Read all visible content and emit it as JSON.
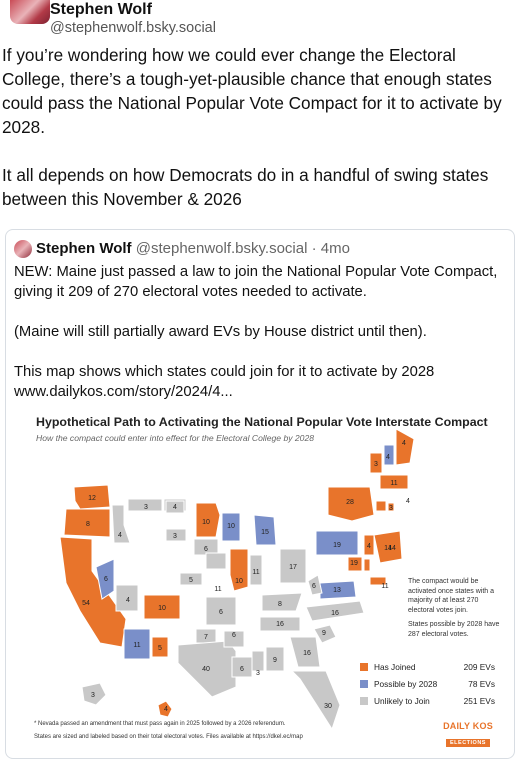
{
  "post": {
    "author_name": "Stephen Wolf",
    "author_handle": "@stephenwolf.bsky.social",
    "paragraphs": [
      "If you’re wondering how we could ever change the Electoral College, there’s a tough-yet-plausible chance that enough states could pass the National Popular Vote Compact for it to activate by 2028.",
      "It all depends on how Democrats do in a handful of swing states between this November & 2026"
    ]
  },
  "quote": {
    "author_name": "Stephen Wolf",
    "author_handle": "@stephenwolf.bsky.social",
    "time": "· 4mo",
    "paragraphs": [
      "NEW: Maine just passed a law to join the National Popular Vote Compact, giving it 209 of 270 electoral votes needed to activate.",
      "(Maine will still partially award EVs by House district until then).",
      "This map shows which states could join for it to activate by 2028 www.dailykos.com/story/2024/4..."
    ]
  },
  "map": {
    "title": "Hypothetical Path to Activating the National Popular Vote Interstate Compact",
    "subtitle": "How the compact could enter into effect for the Electoral College by 2028",
    "note1": "The compact would be activated once states with a majority of at least 270 electoral votes join.",
    "note2": "States possible by 2028 have 287 electoral votes.",
    "footnote1": "* Nevada passed an amendment that must pass again in 2025 followed by a 2026 referendum.",
    "footnote2": "States are sized and labeled based on their total electoral votes. Files available at https://dkel.ec/map",
    "logo_top": "DAILY KOS",
    "logo_bottom": "ELECTIONS",
    "colors": {
      "joined": "#e8742b",
      "possible": "#7a8fc9",
      "unlikely": "#c8c8c8"
    },
    "legend": [
      {
        "label": "Has Joined",
        "value": "209 EVs",
        "color": "#e8742b"
      },
      {
        "label": "Possible by 2028",
        "value": "78 EVs",
        "color": "#7a8fc9"
      },
      {
        "label": "Unlikely to Join",
        "value": "251 EVs",
        "color": "#c8c8c8"
      }
    ],
    "state_ev_labels": [
      "12",
      "8",
      "54",
      "4",
      "6",
      "3",
      "4",
      "3",
      "4",
      "6",
      "10",
      "10",
      "5",
      "5",
      "11",
      "7",
      "40",
      "10",
      "6",
      "6",
      "3",
      "10",
      "15",
      "19",
      "11",
      "17",
      "28",
      "4",
      "3",
      "4",
      "11",
      "4",
      "3",
      "4",
      "14",
      "13",
      "19",
      "16",
      "16",
      "9",
      "8",
      "9",
      "6",
      "6",
      "16",
      "30",
      "3",
      "4",
      "11",
      "11",
      "14"
    ]
  }
}
